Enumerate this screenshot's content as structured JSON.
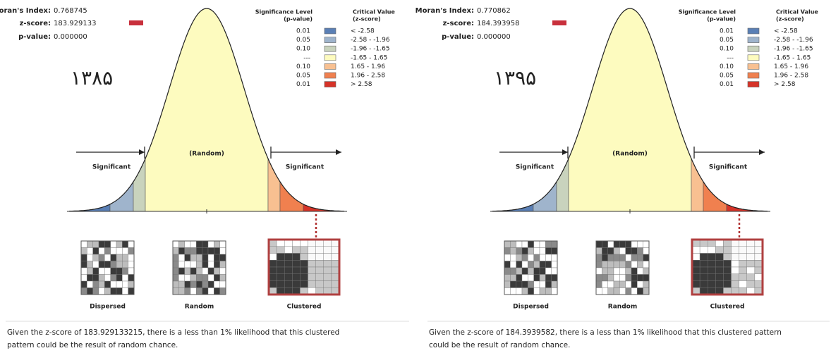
{
  "panels": [
    {
      "stats": [
        {
          "label": "Moran's Index:",
          "value": "0.768745"
        },
        {
          "label": "z-score:",
          "value": "183.929133"
        },
        {
          "label": "p-value:",
          "value": "0.000000"
        }
      ],
      "year": "۱۳۸۵",
      "legend": {
        "headers": [
          [
            "Significance Level",
            "(p-value)"
          ],
          [
            "Critical Value",
            "(z-score)"
          ]
        ],
        "rows": [
          {
            "p": "0.01",
            "z": "< -2.58",
            "color": "#5a7fb5"
          },
          {
            "p": "0.05",
            "z": "-2.58 - -1.96",
            "color": "#9fb4cc"
          },
          {
            "p": "0.10",
            "z": "-1.96 - -1.65",
            "color": "#c9d3bd"
          },
          {
            "p": "---",
            "z": "-1.65 - 1.65",
            "color": "#fdfbbf"
          },
          {
            "p": "0.10",
            "z": "1.65 - 1.96",
            "color": "#f8c091"
          },
          {
            "p": "0.05",
            "z": "1.96 - 2.58",
            "color": "#f0804f"
          },
          {
            "p": "0.01",
            "z": "> 2.58",
            "color": "#d63328"
          }
        ]
      },
      "labels": {
        "left": "Significant",
        "center": "(Random)",
        "right": "Significant"
      },
      "patterns": [
        "Dispersed",
        "Random",
        "Clustered"
      ],
      "caption": [
        "Given the z-score of 183.929133215, there is a less than 1% likelihood that this clustered",
        "pattern could be the result of random chance."
      ]
    },
    {
      "stats": [
        {
          "label": "Moran's Index:",
          "value": "0.770862"
        },
        {
          "label": "z-score:",
          "value": "184.393958"
        },
        {
          "label": "p-value:",
          "value": "0.000000"
        }
      ],
      "year": "۱۳۹۵",
      "legend": {
        "headers": [
          [
            "Significance Level",
            "(p-value)"
          ],
          [
            "Critical Value",
            "(z-score)"
          ]
        ],
        "rows": [
          {
            "p": "0.01",
            "z": "< -2.58",
            "color": "#5a7fb5"
          },
          {
            "p": "0.05",
            "z": "-2.58 - -1.96",
            "color": "#9fb4cc"
          },
          {
            "p": "0.10",
            "z": "-1.96 - -1.65",
            "color": "#c9d3bd"
          },
          {
            "p": "---",
            "z": "-1.65 - 1.65",
            "color": "#fdfbbf"
          },
          {
            "p": "0.10",
            "z": "1.65 - 1.96",
            "color": "#f8c091"
          },
          {
            "p": "0.05",
            "z": "1.96 - 2.58",
            "color": "#f0804f"
          },
          {
            "p": "0.01",
            "z": "> 2.58",
            "color": "#d63328"
          }
        ]
      },
      "labels": {
        "left": "Significant",
        "center": "(Random)",
        "right": "Significant"
      },
      "patterns": [
        "Dispersed",
        "Random",
        "Clustered"
      ],
      "caption": [
        "Given the z-score of 184.3939582, there is a less than 1% likelihood that this clustered pattern",
        "could be the result of random chance."
      ]
    }
  ]
}
